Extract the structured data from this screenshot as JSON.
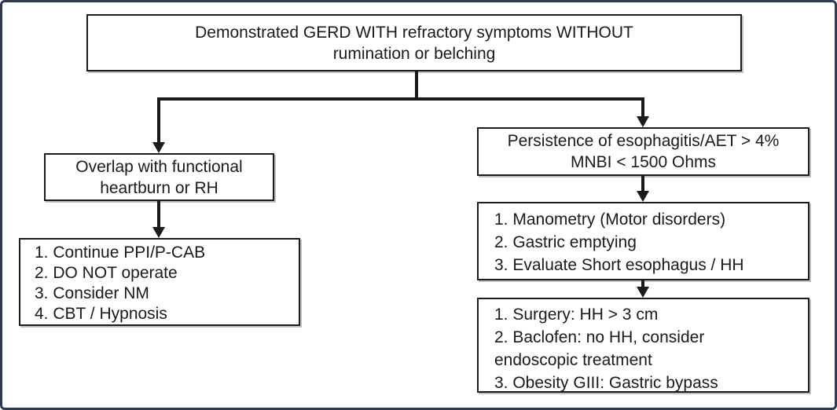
{
  "colors": {
    "frame_border": "#2d3a52",
    "box_border": "#1b1b1b",
    "arrow": "#1b1b1b",
    "text": "#1a1a1a",
    "background": "#ffffff"
  },
  "flowchart": {
    "title_box": {
      "lines": [
        "Demonstrated GERD WITH refractory symptoms WITHOUT",
        "rumination or belching"
      ]
    },
    "left_branch": {
      "condition_box": {
        "lines": [
          "Overlap with functional",
          "heartburn or RH"
        ]
      },
      "management_box": {
        "lines": [
          "1. Continue PPI/P-CAB",
          "2. DO NOT operate",
          "3. Consider NM",
          "4. CBT / Hypnosis"
        ]
      }
    },
    "right_branch": {
      "condition_box": {
        "lines": [
          "Persistence of esophagitis/AET > 4%",
          "MNBI < 1500 Ohms"
        ]
      },
      "workup_box": {
        "lines": [
          "1. Manometry (Motor disorders)",
          "2. Gastric emptying",
          "3. Evaluate Short esophagus / HH"
        ]
      },
      "treatment_box": {
        "lines": [
          "1. Surgery: HH > 3 cm",
          "2. Baclofen: no HH, consider",
          "endoscopic treatment",
          "3. Obesity GIII: Gastric bypass"
        ]
      }
    }
  }
}
